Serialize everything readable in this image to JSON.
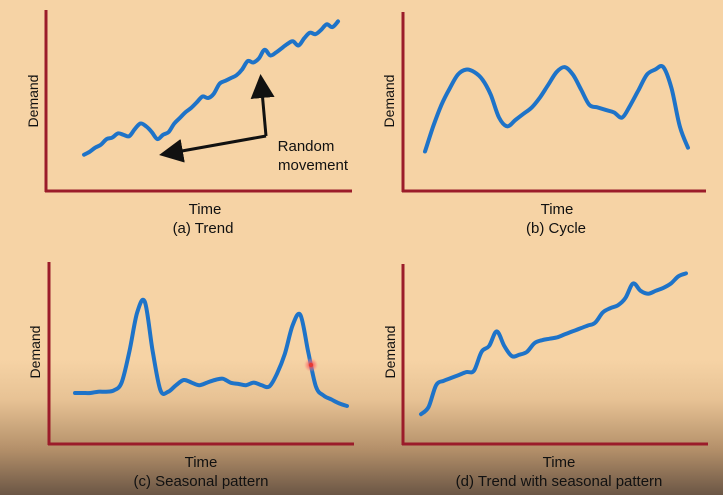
{
  "colors": {
    "axis": "#9b1c2a",
    "curve": "#1e73c8",
    "arrow": "#111111",
    "cursor": "#e53935"
  },
  "chart_data": [
    {
      "type": "line",
      "caption": "(a) Trend",
      "xlabel": "Time",
      "ylabel": "Demand",
      "annotation": "Random movement",
      "series": [
        {
          "values": [
            0.2,
            0.22,
            0.25,
            0.27,
            0.31,
            0.32,
            0.35,
            0.34,
            0.33,
            0.38,
            0.42,
            0.4,
            0.36,
            0.31,
            0.34,
            0.36,
            0.42,
            0.46,
            0.5,
            0.53,
            0.57,
            0.61,
            0.6,
            0.63,
            0.7,
            0.72,
            0.74,
            0.76,
            0.8,
            0.86,
            0.85,
            0.88,
            0.94,
            0.9,
            0.92,
            0.95,
            0.98,
            1.0,
            0.97,
            1.02,
            1.06,
            1.05,
            1.08,
            1.12,
            1.1,
            1.14
          ]
        }
      ]
    },
    {
      "type": "line",
      "caption": "(b) Cycle",
      "xlabel": "Time",
      "ylabel": "Demand",
      "series": [
        {
          "values": [
            0.25,
            0.45,
            0.62,
            0.75,
            0.86,
            0.9,
            0.88,
            0.82,
            0.7,
            0.52,
            0.45,
            0.5,
            0.55,
            0.6,
            0.68,
            0.78,
            0.88,
            0.92,
            0.86,
            0.74,
            0.62,
            0.6,
            0.58,
            0.56,
            0.52,
            0.62,
            0.74,
            0.86,
            0.9,
            0.92,
            0.75,
            0.45,
            0.28
          ]
        }
      ]
    },
    {
      "type": "line",
      "caption": "(c) Seasonal pattern",
      "xlabel": "Time",
      "ylabel": "Demand",
      "series": [
        {
          "values": [
            0.3,
            0.3,
            0.3,
            0.31,
            0.31,
            0.32,
            0.38,
            0.62,
            0.92,
            1.0,
            0.62,
            0.32,
            0.31,
            0.36,
            0.4,
            0.38,
            0.36,
            0.38,
            0.4,
            0.41,
            0.38,
            0.37,
            0.36,
            0.38,
            0.36,
            0.35,
            0.45,
            0.6,
            0.82,
            0.9,
            0.62,
            0.35,
            0.28,
            0.25,
            0.22,
            0.2
          ]
        }
      ]
    },
    {
      "type": "line",
      "caption": "(d) Trend with seasonal pattern",
      "xlabel": "Time",
      "ylabel": "Demand",
      "series": [
        {
          "values": [
            0.15,
            0.2,
            0.35,
            0.38,
            0.4,
            0.42,
            0.44,
            0.45,
            0.58,
            0.62,
            0.72,
            0.62,
            0.55,
            0.56,
            0.58,
            0.64,
            0.66,
            0.67,
            0.68,
            0.7,
            0.72,
            0.74,
            0.76,
            0.78,
            0.85,
            0.88,
            0.9,
            0.95,
            1.05,
            1.0,
            0.98,
            1.0,
            1.02,
            1.05,
            1.1,
            1.12
          ]
        }
      ]
    }
  ]
}
